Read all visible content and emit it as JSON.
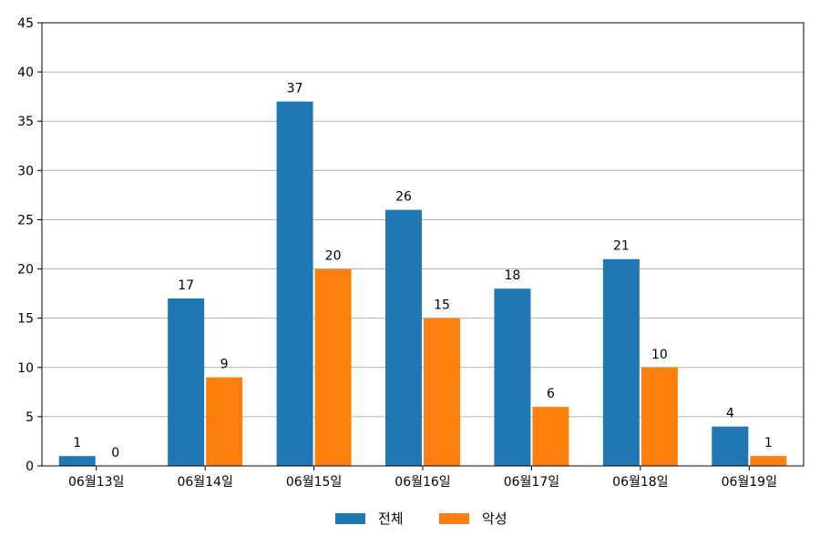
{
  "chart_data": {
    "type": "bar",
    "title": "",
    "xlabel": "",
    "ylabel": "",
    "categories": [
      "06월13일",
      "06월14일",
      "06월15일",
      "06월16일",
      "06월17일",
      "06월18일",
      "06월19일"
    ],
    "series": [
      {
        "name": "전체",
        "color": "#1f77b4",
        "values": [
          1,
          17,
          37,
          26,
          18,
          21,
          4
        ]
      },
      {
        "name": "악성",
        "color": "#ff7f0e",
        "values": [
          0,
          9,
          20,
          15,
          6,
          10,
          1
        ]
      }
    ],
    "ylim": [
      0,
      45
    ],
    "yticks": [
      0,
      5,
      10,
      15,
      20,
      25,
      30,
      35,
      40,
      45
    ],
    "grid": "horizontal",
    "legend_position": "bottom-center",
    "data_labels": true
  }
}
